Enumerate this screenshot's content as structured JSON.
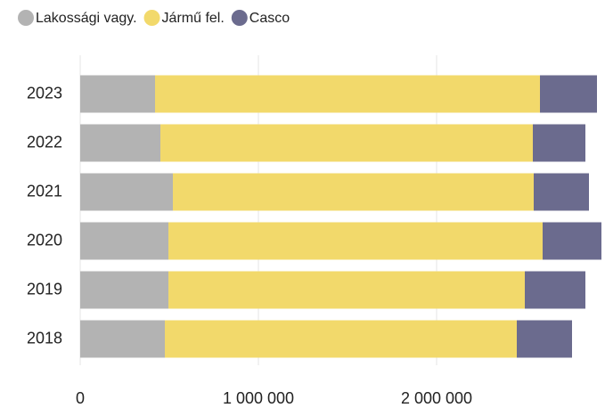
{
  "chart_data": {
    "type": "stacked-bar-horizontal",
    "categories": [
      "2023",
      "2022",
      "2021",
      "2020",
      "2019",
      "2018"
    ],
    "series": [
      {
        "name": "Lakossági vagy.",
        "color": "#b3b3b3",
        "values": [
          420000,
          450000,
          520000,
          495000,
          495000,
          475000
        ]
      },
      {
        "name": "Jármű fel.",
        "color": "#f2d96b",
        "values": [
          2160000,
          2090000,
          2025000,
          2100000,
          2000000,
          1975000
        ]
      },
      {
        "name": "Casco",
        "color": "#6b6b8e",
        "values": [
          320000,
          295000,
          310000,
          330000,
          340000,
          310000
        ]
      }
    ],
    "xlim": [
      0,
      2925000
    ],
    "xticks": [
      0,
      {
        "value": 1000000,
        "label": "1 000 000"
      },
      {
        "value": 2000000,
        "label": "2 000 000"
      }
    ],
    "grid": true,
    "legend": "top-left"
  }
}
